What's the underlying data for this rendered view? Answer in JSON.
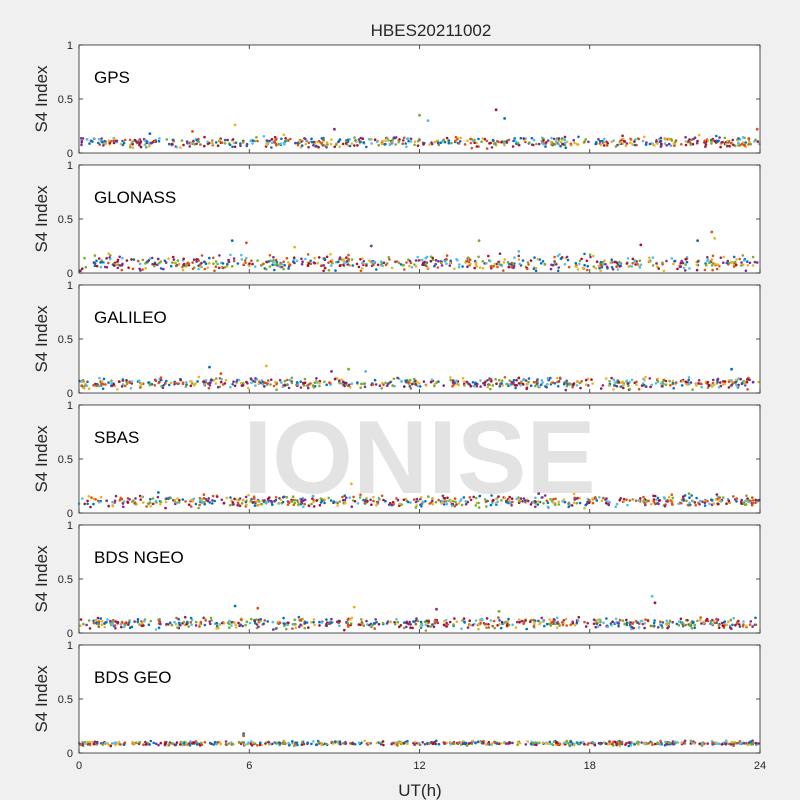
{
  "chart_data": {
    "type": "scatter",
    "title": "HBES20211002",
    "xlabel": "UT(h)",
    "ylabel": "S4 Index",
    "xlim": [
      0,
      24
    ],
    "ylim": [
      0,
      1
    ],
    "x_ticks": [
      "0",
      "6",
      "12",
      "18",
      "24"
    ],
    "y_ticks": [
      "0",
      "0.5",
      "1"
    ],
    "grid": false,
    "watermark": "IONISE",
    "series_colors": [
      "#0072BD",
      "#D95319",
      "#EDB120",
      "#7E2F8E",
      "#77AC30",
      "#4DBEEE",
      "#A2142F"
    ],
    "panels": [
      {
        "label": "GPS",
        "baseline": 0.1,
        "noise": 0.03,
        "highlights": [
          [
            2.5,
            0.18
          ],
          [
            4.0,
            0.2
          ],
          [
            5.5,
            0.26
          ],
          [
            9.0,
            0.22
          ],
          [
            12.0,
            0.35
          ],
          [
            12.3,
            0.3
          ],
          [
            14.7,
            0.4
          ],
          [
            15.0,
            0.32
          ],
          [
            23.9,
            0.22
          ]
        ]
      },
      {
        "label": "GLONASS",
        "baseline": 0.09,
        "noise": 0.04,
        "highlights": [
          [
            5.4,
            0.3
          ],
          [
            5.9,
            0.28
          ],
          [
            7.6,
            0.24
          ],
          [
            10.3,
            0.25
          ],
          [
            14.1,
            0.3
          ],
          [
            15.5,
            0.2
          ],
          [
            19.8,
            0.26
          ],
          [
            21.8,
            0.3
          ],
          [
            22.3,
            0.38
          ],
          [
            22.4,
            0.32
          ]
        ]
      },
      {
        "label": "GALILEO",
        "baseline": 0.09,
        "noise": 0.03,
        "highlights": [
          [
            4.6,
            0.24
          ],
          [
            5.0,
            0.18
          ],
          [
            6.6,
            0.25
          ],
          [
            8.9,
            0.2
          ],
          [
            9.5,
            0.22
          ],
          [
            10.1,
            0.2
          ],
          [
            15.5,
            0.14
          ],
          [
            23.0,
            0.22
          ]
        ]
      },
      {
        "label": "SBAS",
        "baseline": 0.11,
        "noise": 0.03,
        "highlights": [
          [
            2.8,
            0.19
          ],
          [
            4.4,
            0.17
          ],
          [
            9.6,
            0.27
          ],
          [
            16.2,
            0.18
          ],
          [
            21.5,
            0.18
          ]
        ]
      },
      {
        "label": "BDS NGEO",
        "baseline": 0.09,
        "noise": 0.03,
        "highlights": [
          [
            5.5,
            0.25
          ],
          [
            6.3,
            0.23
          ],
          [
            9.7,
            0.24
          ],
          [
            12.6,
            0.22
          ],
          [
            14.8,
            0.2
          ],
          [
            20.2,
            0.34
          ],
          [
            20.3,
            0.28
          ]
        ]
      },
      {
        "label": "BDS GEO",
        "baseline": 0.09,
        "noise": 0.012,
        "highlights": [
          [
            5.8,
            0.18
          ],
          [
            5.8,
            0.16
          ]
        ]
      }
    ]
  }
}
